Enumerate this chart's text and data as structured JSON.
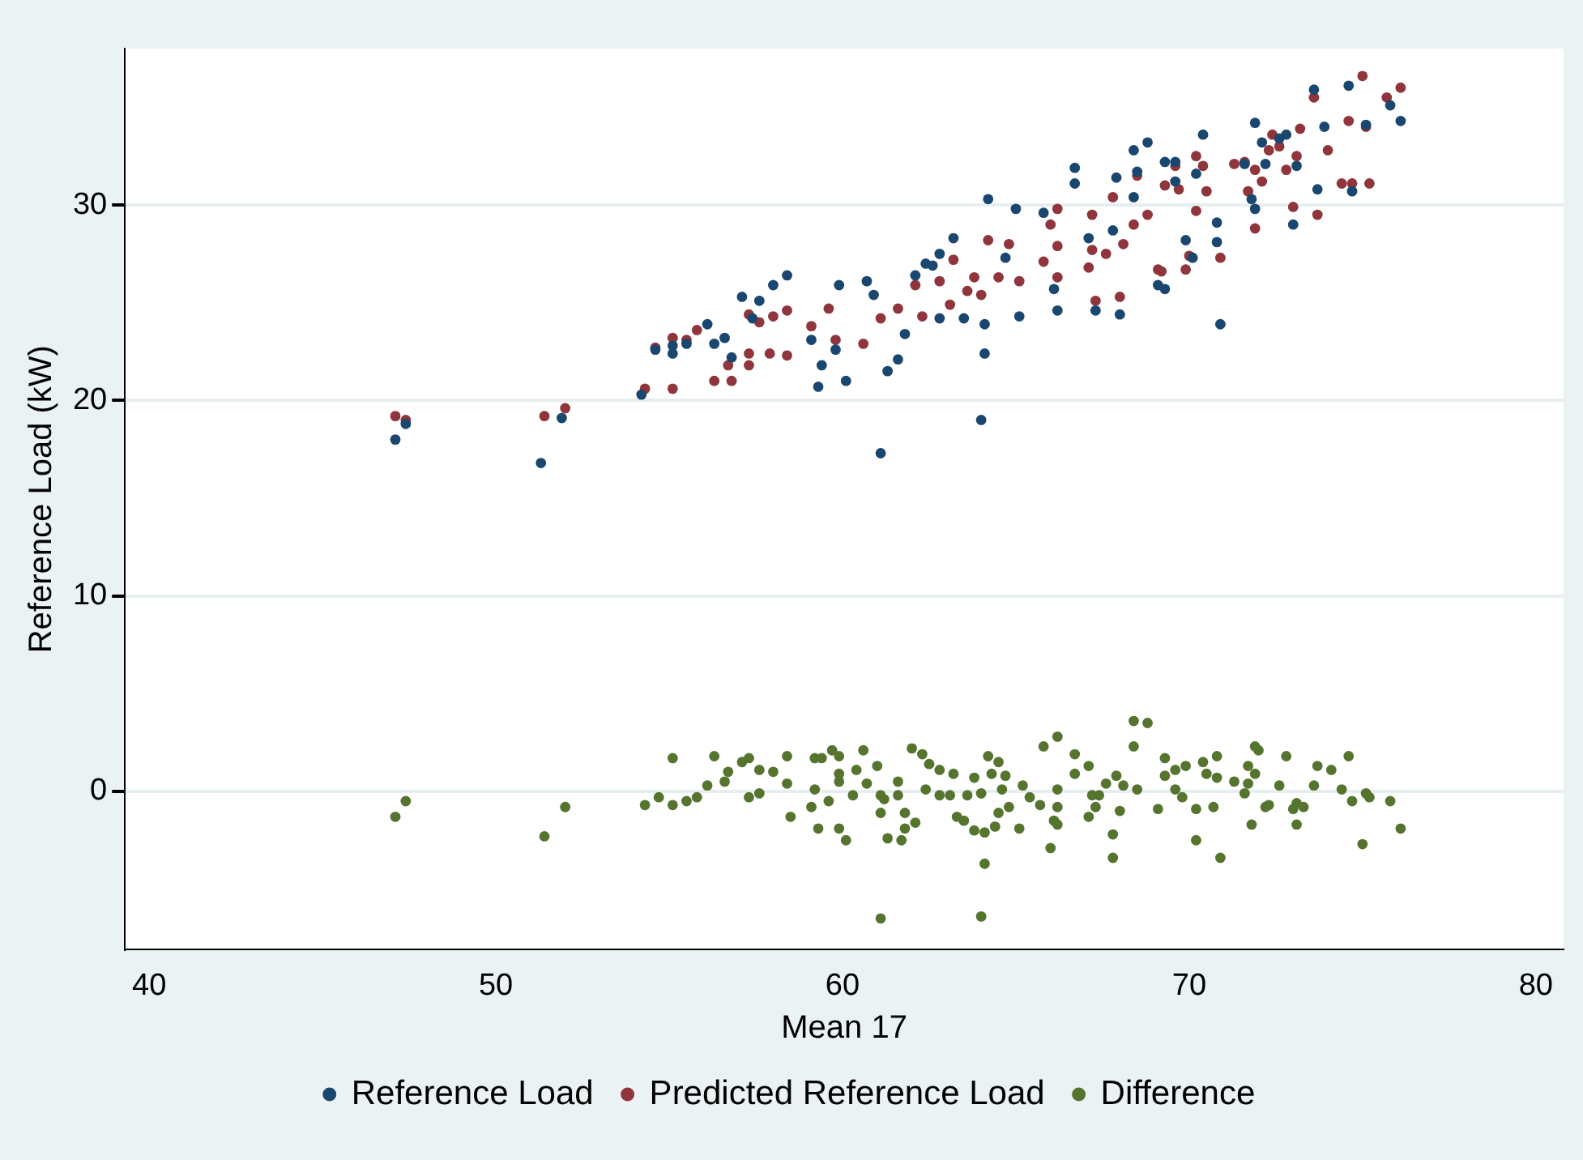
{
  "chart_data": {
    "type": "scatter",
    "xlabel": "Mean 17",
    "ylabel": "Reference Load (kW)",
    "xlim": [
      39.3,
      80.8
    ],
    "ylim": [
      -8.1,
      38
    ],
    "xticks": [
      40,
      50,
      60,
      70,
      80
    ],
    "yticks": [
      0,
      10,
      20,
      30
    ],
    "grid": "y",
    "legend": "bottom",
    "marker": "circle",
    "series": [
      {
        "name": "Reference Load",
        "color": "#1a476f",
        "x": [
          47.1,
          47.4,
          51.3,
          51.9,
          54.2,
          54.6,
          55.1,
          55.1,
          55.5,
          56.1,
          56.3,
          56.6,
          56.8,
          57.1,
          57.6,
          57.4,
          58.0,
          58.4,
          59.1,
          59.3,
          59.4,
          59.9,
          59.8,
          60.1,
          60.7,
          60.9,
          61.1,
          61.3,
          61.6,
          61.8,
          62.1,
          62.4,
          62.6,
          62.8,
          63.2,
          62.8,
          63.5,
          64.0,
          64.1,
          64.1,
          64.2,
          65.0,
          65.1,
          64.7,
          65.8,
          66.2,
          66.1,
          66.7,
          66.7,
          67.1,
          67.3,
          67.8,
          67.9,
          68.4,
          68.0,
          68.4,
          68.8,
          68.5,
          69.3,
          69.6,
          69.6,
          70.4,
          70.2,
          70.8,
          70.8,
          69.9,
          70.1,
          69.1,
          69.3,
          70.9,
          71.9,
          72.1,
          72.2,
          71.6,
          71.8,
          71.9,
          72.6,
          72.8,
          73.1,
          73.0,
          73.6,
          73.7,
          73.9,
          74.6,
          74.7,
          75.1,
          75.8,
          76.1
        ],
        "values": [
          18.0,
          18.8,
          16.8,
          19.1,
          20.3,
          22.6,
          22.4,
          22.8,
          22.9,
          23.9,
          22.9,
          23.2,
          22.2,
          25.3,
          25.1,
          24.2,
          25.9,
          26.4,
          23.1,
          20.7,
          21.8,
          25.9,
          22.6,
          21.0,
          26.1,
          25.4,
          17.3,
          21.5,
          22.1,
          23.4,
          26.4,
          27.0,
          26.9,
          27.5,
          28.3,
          24.2,
          24.2,
          19.0,
          22.4,
          23.9,
          30.3,
          29.8,
          24.3,
          27.3,
          29.6,
          24.6,
          25.7,
          31.1,
          31.9,
          28.3,
          24.6,
          28.7,
          31.4,
          30.4,
          24.4,
          32.8,
          33.2,
          31.7,
          32.2,
          32.2,
          31.2,
          33.6,
          31.6,
          29.1,
          28.1,
          28.2,
          27.3,
          25.9,
          25.7,
          23.9,
          34.2,
          33.2,
          32.1,
          32.1,
          30.3,
          29.8,
          33.4,
          33.6,
          32.0,
          29.0,
          35.9,
          30.8,
          34.0,
          36.1,
          30.7,
          34.1,
          35.1,
          34.3
        ]
      },
      {
        "name": "Predicted Reference Load",
        "color": "#90353b",
        "x": [
          47.1,
          47.4,
          51.4,
          52.0,
          54.3,
          55.1,
          54.6,
          55.1,
          55.5,
          55.8,
          56.3,
          56.8,
          56.7,
          57.3,
          57.3,
          57.3,
          57.6,
          57.9,
          58.0,
          58.4,
          58.4,
          59.1,
          59.6,
          59.8,
          60.6,
          61.1,
          61.6,
          62.1,
          62.3,
          62.8,
          63.2,
          63.1,
          63.6,
          63.8,
          64.0,
          64.2,
          64.5,
          64.8,
          65.1,
          65.8,
          66.0,
          66.2,
          66.2,
          66.2,
          67.1,
          67.2,
          67.3,
          67.2,
          67.6,
          67.8,
          68.0,
          68.1,
          68.4,
          68.5,
          68.8,
          69.3,
          69.6,
          69.7,
          70.2,
          70.4,
          70.5,
          70.2,
          70.0,
          69.9,
          69.1,
          69.2,
          70.9,
          71.3,
          71.6,
          71.9,
          71.7,
          72.1,
          71.9,
          72.4,
          72.6,
          72.3,
          72.8,
          73.2,
          73.1,
          73.0,
          73.7,
          74.0,
          73.6,
          74.4,
          74.7,
          75.2,
          74.6,
          75.1,
          75.0,
          75.7,
          76.1
        ],
        "values": [
          19.2,
          19.0,
          19.2,
          19.6,
          20.6,
          20.6,
          22.7,
          23.2,
          23.1,
          23.6,
          21.0,
          21.0,
          21.8,
          22.4,
          21.8,
          24.4,
          24.0,
          22.4,
          24.3,
          24.6,
          22.3,
          23.8,
          24.7,
          23.1,
          22.9,
          24.2,
          24.7,
          25.9,
          24.3,
          26.1,
          27.2,
          24.9,
          25.6,
          26.3,
          25.4,
          28.2,
          26.3,
          28.0,
          26.1,
          27.1,
          29.0,
          29.8,
          27.9,
          26.3,
          26.8,
          27.7,
          25.1,
          29.5,
          27.5,
          30.4,
          25.3,
          28.0,
          29.0,
          31.5,
          29.5,
          31.0,
          32.0,
          30.8,
          32.5,
          32.0,
          30.7,
          29.7,
          27.4,
          26.7,
          26.7,
          26.6,
          27.3,
          32.1,
          32.2,
          31.8,
          30.7,
          31.2,
          28.8,
          33.6,
          33.0,
          32.8,
          31.8,
          33.9,
          32.5,
          29.9,
          29.5,
          32.8,
          35.5,
          31.1,
          31.1,
          31.1,
          34.3,
          34.0,
          36.6,
          35.5,
          36.0
        ]
      },
      {
        "name": "Difference",
        "color": "#55752f",
        "x": [
          47.1,
          47.4,
          51.4,
          52.0,
          54.3,
          54.7,
          55.1,
          55.1,
          55.5,
          55.8,
          56.1,
          56.3,
          56.6,
          56.7,
          57.1,
          57.3,
          57.3,
          57.6,
          57.6,
          58.0,
          58.4,
          58.4,
          58.5,
          59.2,
          59.4,
          59.2,
          59.1,
          59.3,
          59.7,
          59.9,
          59.9,
          59.9,
          59.6,
          59.9,
          60.1,
          60.3,
          60.4,
          60.6,
          60.7,
          61.0,
          61.1,
          61.1,
          61.2,
          61.3,
          61.1,
          61.6,
          61.6,
          61.8,
          61.8,
          61.7,
          62.0,
          62.1,
          62.3,
          62.4,
          62.5,
          62.8,
          62.8,
          63.2,
          63.1,
          63.3,
          63.5,
          63.6,
          63.8,
          63.8,
          64.1,
          64.0,
          64.1,
          64.0,
          64.2,
          64.3,
          64.5,
          64.6,
          64.5,
          64.4,
          64.8,
          64.7,
          65.1,
          65.2,
          65.4,
          65.7,
          65.8,
          66.2,
          66.2,
          66.2,
          66.1,
          66.2,
          66.0,
          66.7,
          66.7,
          67.1,
          67.2,
          67.4,
          67.1,
          67.3,
          67.6,
          67.8,
          67.8,
          67.9,
          68.0,
          68.1,
          68.4,
          68.8,
          68.4,
          68.5,
          69.3,
          69.3,
          69.1,
          69.6,
          69.9,
          69.6,
          69.8,
          70.2,
          70.2,
          70.4,
          70.5,
          70.7,
          70.8,
          70.8,
          70.9,
          71.3,
          71.6,
          71.7,
          71.7,
          71.8,
          71.9,
          71.9,
          72.0,
          72.2,
          72.3,
          72.6,
          72.8,
          73.0,
          73.1,
          73.1,
          73.3,
          73.6,
          73.7,
          74.1,
          74.4,
          74.6,
          74.7,
          75.0,
          75.1,
          75.2,
          75.8,
          76.1
        ],
        "values": [
          -1.3,
          -0.5,
          -2.3,
          -0.8,
          -0.7,
          -0.3,
          1.7,
          -0.7,
          -0.5,
          -0.3,
          0.3,
          1.8,
          0.5,
          1.0,
          1.5,
          1.7,
          -0.3,
          1.1,
          -0.1,
          1.0,
          1.8,
          0.4,
          -1.3,
          1.7,
          1.7,
          0.1,
          -0.8,
          -1.9,
          2.1,
          1.8,
          0.9,
          0.5,
          -0.5,
          -1.9,
          -2.5,
          -0.2,
          1.1,
          2.1,
          0.4,
          1.3,
          -0.2,
          -1.1,
          -0.4,
          -2.4,
          -6.5,
          0.5,
          -0.2,
          -1.1,
          -1.9,
          -2.5,
          2.2,
          -1.6,
          1.9,
          0.1,
          1.4,
          1.1,
          -0.2,
          0.9,
          -0.2,
          -1.3,
          -1.5,
          -0.2,
          0.7,
          -2.0,
          -3.7,
          -6.4,
          -2.1,
          -0.1,
          1.8,
          0.9,
          1.5,
          0.1,
          -1.1,
          -1.8,
          -0.8,
          0.8,
          -1.9,
          0.3,
          -0.3,
          -0.7,
          2.3,
          2.8,
          0.1,
          -0.8,
          -1.5,
          -1.7,
          -2.9,
          1.9,
          0.9,
          1.3,
          -0.2,
          -0.2,
          -1.3,
          -0.8,
          0.4,
          -2.2,
          -3.4,
          0.8,
          -1.0,
          0.3,
          3.6,
          3.5,
          2.3,
          0.1,
          0.8,
          1.7,
          -0.9,
          1.1,
          1.3,
          0.1,
          -0.3,
          -0.9,
          -2.5,
          1.5,
          0.9,
          -0.8,
          1.8,
          0.7,
          -3.4,
          0.5,
          -0.1,
          1.3,
          0.4,
          -1.7,
          0.9,
          2.3,
          2.1,
          -0.8,
          -0.7,
          0.3,
          1.8,
          -0.9,
          -0.6,
          -1.7,
          -0.8,
          0.3,
          1.3,
          1.1,
          0.1,
          1.8,
          -0.5,
          -2.7,
          -0.1,
          -0.3,
          -0.5,
          -1.9
        ]
      }
    ]
  }
}
